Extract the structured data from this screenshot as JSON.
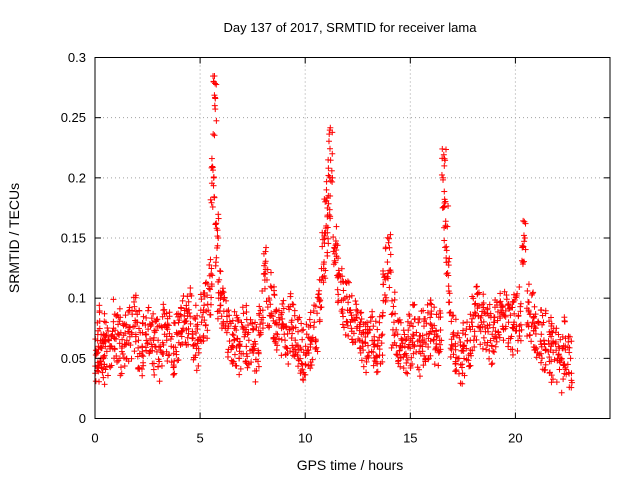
{
  "chart_data": {
    "type": "scatter",
    "title": "Day 137 of 2017, SRMTID for receiver lama",
    "xlabel": "GPS time / hours",
    "ylabel": "SRMTID / TECUs",
    "xlim": [
      0,
      24.5
    ],
    "ylim": [
      0,
      0.3
    ],
    "xticks": [
      0,
      5,
      10,
      15,
      20
    ],
    "xtick_labels": [
      "0",
      "5",
      "10",
      "15",
      "20"
    ],
    "yticks": [
      0,
      0.05,
      0.1,
      0.15,
      0.2,
      0.25,
      0.3
    ],
    "ytick_labels": [
      "0",
      "0.05",
      "0.1",
      "0.15",
      "0.2",
      "0.25",
      "0.3"
    ],
    "grid": true,
    "marker": "+",
    "color": "#ff0000",
    "series": [
      {
        "name": "lama",
        "points_note": "approximate density bands read from the plot",
        "x": [
          0.1,
          0.2,
          0.3,
          0.4,
          0.5,
          0.7,
          0.9,
          1.1,
          1.3,
          1.5,
          1.7,
          1.9,
          2.1,
          2.3,
          2.5,
          2.7,
          2.9,
          3.1,
          3.3,
          3.5,
          3.7,
          3.9,
          4.1,
          4.3,
          4.5,
          4.7,
          4.9,
          5.1,
          5.3,
          5.5,
          5.6,
          5.7,
          5.8,
          5.9,
          6.1,
          6.3,
          6.5,
          6.7,
          6.9,
          7.1,
          7.3,
          7.5,
          7.7,
          7.9,
          8.1,
          8.3,
          8.5,
          8.7,
          8.9,
          9.1,
          9.3,
          9.5,
          9.7,
          9.9,
          10.1,
          10.3,
          10.5,
          10.7,
          10.9,
          11.0,
          11.1,
          11.2,
          11.4,
          11.6,
          11.8,
          12.0,
          12.2,
          12.4,
          12.6,
          12.8,
          13.0,
          13.2,
          13.4,
          13.6,
          13.8,
          14.0,
          14.2,
          14.4,
          14.6,
          14.8,
          15.0,
          15.2,
          15.4,
          15.6,
          15.8,
          16.0,
          16.2,
          16.4,
          16.6,
          16.7,
          16.8,
          17.0,
          17.2,
          17.4,
          17.6,
          17.8,
          18.0,
          18.2,
          18.4,
          18.6,
          18.8,
          19.0,
          19.2,
          19.4,
          19.6,
          19.8,
          20.0,
          20.2,
          20.4,
          20.6,
          20.8,
          21.0,
          21.2,
          21.4,
          21.6,
          21.8,
          22.0,
          22.2,
          22.4,
          22.6
        ],
        "y": [
          0.055,
          0.06,
          0.07,
          0.05,
          0.065,
          0.06,
          0.075,
          0.07,
          0.06,
          0.065,
          0.07,
          0.08,
          0.065,
          0.06,
          0.07,
          0.065,
          0.06,
          0.055,
          0.07,
          0.065,
          0.06,
          0.07,
          0.075,
          0.08,
          0.085,
          0.07,
          0.065,
          0.08,
          0.09,
          0.11,
          0.2,
          0.26,
          0.15,
          0.1,
          0.085,
          0.075,
          0.07,
          0.065,
          0.06,
          0.07,
          0.065,
          0.06,
          0.055,
          0.09,
          0.12,
          0.1,
          0.085,
          0.08,
          0.075,
          0.07,
          0.08,
          0.075,
          0.06,
          0.055,
          0.06,
          0.065,
          0.08,
          0.1,
          0.13,
          0.16,
          0.19,
          0.22,
          0.14,
          0.12,
          0.1,
          0.09,
          0.08,
          0.075,
          0.07,
          0.06,
          0.055,
          0.065,
          0.06,
          0.07,
          0.12,
          0.13,
          0.08,
          0.07,
          0.065,
          0.06,
          0.065,
          0.07,
          0.06,
          0.065,
          0.07,
          0.075,
          0.07,
          0.065,
          0.2,
          0.16,
          0.11,
          0.07,
          0.06,
          0.05,
          0.06,
          0.065,
          0.08,
          0.085,
          0.08,
          0.075,
          0.07,
          0.08,
          0.085,
          0.09,
          0.08,
          0.075,
          0.08,
          0.085,
          0.15,
          0.09,
          0.08,
          0.075,
          0.07,
          0.065,
          0.06,
          0.055,
          0.05,
          0.045,
          0.06,
          0.05
        ]
      }
    ]
  }
}
